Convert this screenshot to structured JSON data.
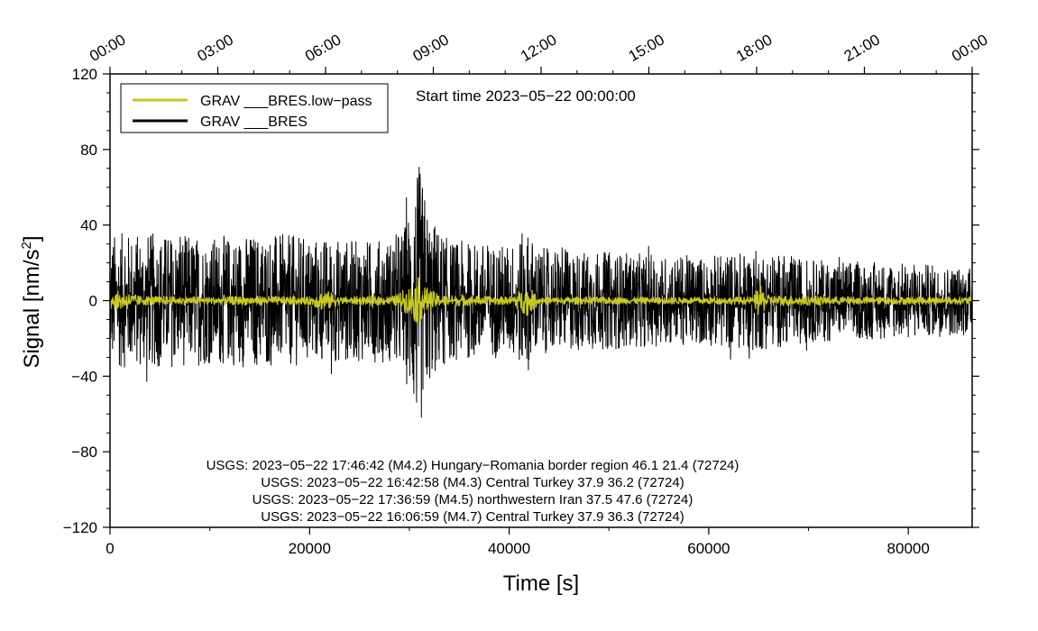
{
  "chart_data": {
    "type": "line",
    "xlabel": "Time [s]",
    "ylabel_main": "Signal [nm/s",
    "ylabel_sup": "2",
    "ylabel_close": "]",
    "xlim": [
      0,
      86400
    ],
    "ylim": [
      -120,
      120
    ],
    "x_ticks": [
      {
        "value": 0,
        "label": "0"
      },
      {
        "value": 20000,
        "label": "20000"
      },
      {
        "value": 40000,
        "label": "40000"
      },
      {
        "value": 60000,
        "label": "60000"
      },
      {
        "value": 80000,
        "label": "80000"
      }
    ],
    "y_ticks": [
      {
        "value": 120,
        "label": "120"
      },
      {
        "value": 80,
        "label": "80"
      },
      {
        "value": 40,
        "label": "40"
      },
      {
        "value": 0,
        "label": "0"
      },
      {
        "value": -40,
        "label": "−40"
      },
      {
        "value": -80,
        "label": "−80"
      },
      {
        "value": -120,
        "label": "−120"
      }
    ],
    "top_ticks": [
      {
        "value": 0,
        "label": "00:00"
      },
      {
        "value": 10800,
        "label": "03:00"
      },
      {
        "value": 21600,
        "label": "06:00"
      },
      {
        "value": 32400,
        "label": "09:00"
      },
      {
        "value": 43200,
        "label": "12:00"
      },
      {
        "value": 54000,
        "label": "15:00"
      },
      {
        "value": 64800,
        "label": "18:00"
      },
      {
        "value": 75600,
        "label": "21:00"
      },
      {
        "value": 86400,
        "label": "00:00"
      }
    ],
    "start_time": "Start time 2023−05−22 00:00:00",
    "legend_position": "top-left",
    "grid": false,
    "series": [
      {
        "name": "GRAV ___BRES.low−pass",
        "color": "#c8c81e",
        "envelope_amplitude": [
          [
            0,
            5
          ],
          [
            1500,
            5
          ],
          [
            3000,
            2.5
          ],
          [
            10000,
            2
          ],
          [
            15000,
            2.5
          ],
          [
            20000,
            2
          ],
          [
            21500,
            6
          ],
          [
            23000,
            2
          ],
          [
            28500,
            2.5
          ],
          [
            30000,
            8
          ],
          [
            30800,
            13
          ],
          [
            31500,
            8
          ],
          [
            33000,
            3
          ],
          [
            40000,
            2
          ],
          [
            41800,
            8
          ],
          [
            43000,
            2
          ],
          [
            55000,
            1.8
          ],
          [
            64500,
            2
          ],
          [
            65000,
            9
          ],
          [
            66000,
            3
          ],
          [
            75000,
            2
          ],
          [
            86400,
            2
          ]
        ]
      },
      {
        "name": "GRAV ___BRES",
        "color": "#000000",
        "envelope_amplitude": [
          [
            0,
            36
          ],
          [
            5000,
            36
          ],
          [
            10000,
            34
          ],
          [
            15000,
            36
          ],
          [
            20000,
            34
          ],
          [
            25000,
            32
          ],
          [
            28000,
            33
          ],
          [
            29500,
            40
          ],
          [
            30500,
            62
          ],
          [
            31000,
            72
          ],
          [
            32000,
            45
          ],
          [
            34000,
            32
          ],
          [
            40000,
            30
          ],
          [
            41800,
            38
          ],
          [
            43000,
            28
          ],
          [
            50000,
            26
          ],
          [
            55000,
            24
          ],
          [
            60000,
            24
          ],
          [
            64800,
            27
          ],
          [
            70000,
            22
          ],
          [
            80000,
            20
          ],
          [
            86400,
            18
          ]
        ]
      }
    ],
    "annotations": [
      "USGS: 2023−05−22 17:46:42 (M4.2) Hungary−Romania border region 46.1 21.4 (72724)",
      "USGS: 2023−05−22 16:42:58 (M4.3) Central Turkey 37.9 36.2 (72724)",
      "USGS: 2023−05−22 17:36:59 (M4.5) northwestern Iran 37.5 47.6 (72724)",
      "USGS: 2023−05−22 16:06:59 (M4.7) Central Turkey 37.9 36.3 (72724)"
    ]
  }
}
